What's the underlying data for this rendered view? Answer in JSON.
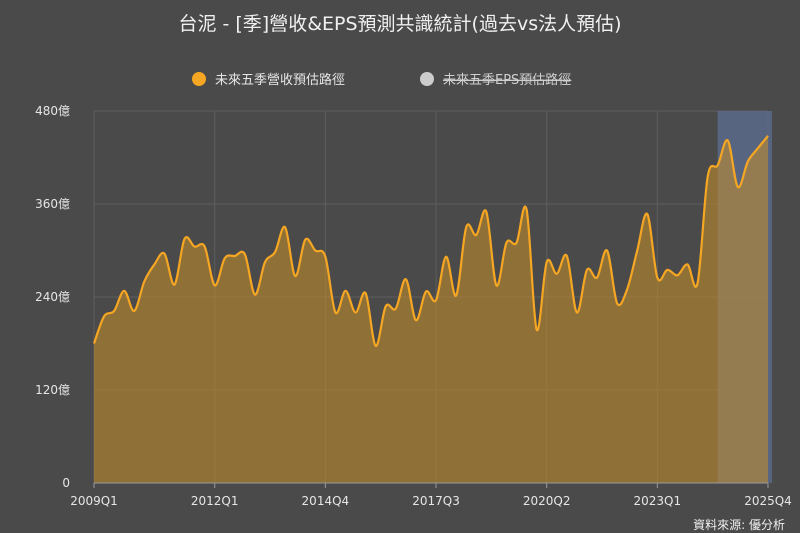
{
  "chart_data": {
    "type": "area",
    "title": "台泥 - [季]營收&EPS預測共識統計(過去vs法人預估)",
    "ylabel": "",
    "xlabel": "",
    "ylim": [
      0,
      480
    ],
    "y_ticks": [
      "0",
      "120億",
      "240億",
      "360億",
      "480億"
    ],
    "y_tick_values": [
      0,
      120,
      240,
      360,
      480
    ],
    "x_tick_labels": [
      "2009Q1",
      "2012Q1",
      "2014Q4",
      "2017Q3",
      "2020Q2",
      "2023Q1",
      "2025Q4"
    ],
    "x_tick_indices": [
      0,
      12,
      23,
      34,
      45,
      56,
      67
    ],
    "forecast_start_index": 62,
    "legend": [
      {
        "name": "未來五季營收預估路徑",
        "color": "#f5a623",
        "enabled": true
      },
      {
        "name": "未來五季EPS預估路徑",
        "color": "#cccccc",
        "enabled": false
      }
    ],
    "series": [
      {
        "name": "未來五季營收預估路徑",
        "color": "#f5a623",
        "x": [
          "2009Q1",
          "2009Q2",
          "2009Q3",
          "2009Q4",
          "2010Q1",
          "2010Q2",
          "2010Q3",
          "2010Q4",
          "2011Q1",
          "2011Q2",
          "2011Q3",
          "2011Q4",
          "2012Q1",
          "2012Q2",
          "2012Q3",
          "2012Q4",
          "2013Q1",
          "2013Q2",
          "2013Q3",
          "2013Q4",
          "2014Q1",
          "2014Q2",
          "2014Q3",
          "2014Q4",
          "2015Q1",
          "2015Q2",
          "2015Q3",
          "2015Q4",
          "2016Q1",
          "2016Q2",
          "2016Q3",
          "2016Q4",
          "2017Q1",
          "2017Q2",
          "2017Q3",
          "2017Q4",
          "2018Q1",
          "2018Q2",
          "2018Q3",
          "2018Q4",
          "2019Q1",
          "2019Q2",
          "2019Q3",
          "2019Q4",
          "2020Q1",
          "2020Q2",
          "2020Q3",
          "2020Q4",
          "2021Q1",
          "2021Q2",
          "2021Q3",
          "2021Q4",
          "2022Q1",
          "2022Q2",
          "2022Q3",
          "2022Q4",
          "2023Q1",
          "2023Q2",
          "2023Q3",
          "2023Q4",
          "2024Q1",
          "2024Q2",
          "2024Q3",
          "2024Q4",
          "2025Q1",
          "2025Q2",
          "2025Q3",
          "2025Q4"
        ],
        "values": [
          180,
          215,
          222,
          248,
          222,
          260,
          282,
          296,
          256,
          315,
          305,
          305,
          255,
          290,
          293,
          295,
          243,
          285,
          298,
          330,
          267,
          314,
          300,
          292,
          220,
          248,
          220,
          245,
          177,
          228,
          225,
          263,
          210,
          247,
          236,
          292,
          242,
          330,
          320,
          350,
          255,
          310,
          310,
          353,
          198,
          285,
          270,
          293,
          220,
          275,
          265,
          300,
          232,
          250,
          300,
          347,
          265,
          275,
          268,
          282,
          258,
          395,
          410,
          442,
          382,
          415,
          432,
          448
        ]
      }
    ],
    "source": "資料來源: 優分析"
  }
}
